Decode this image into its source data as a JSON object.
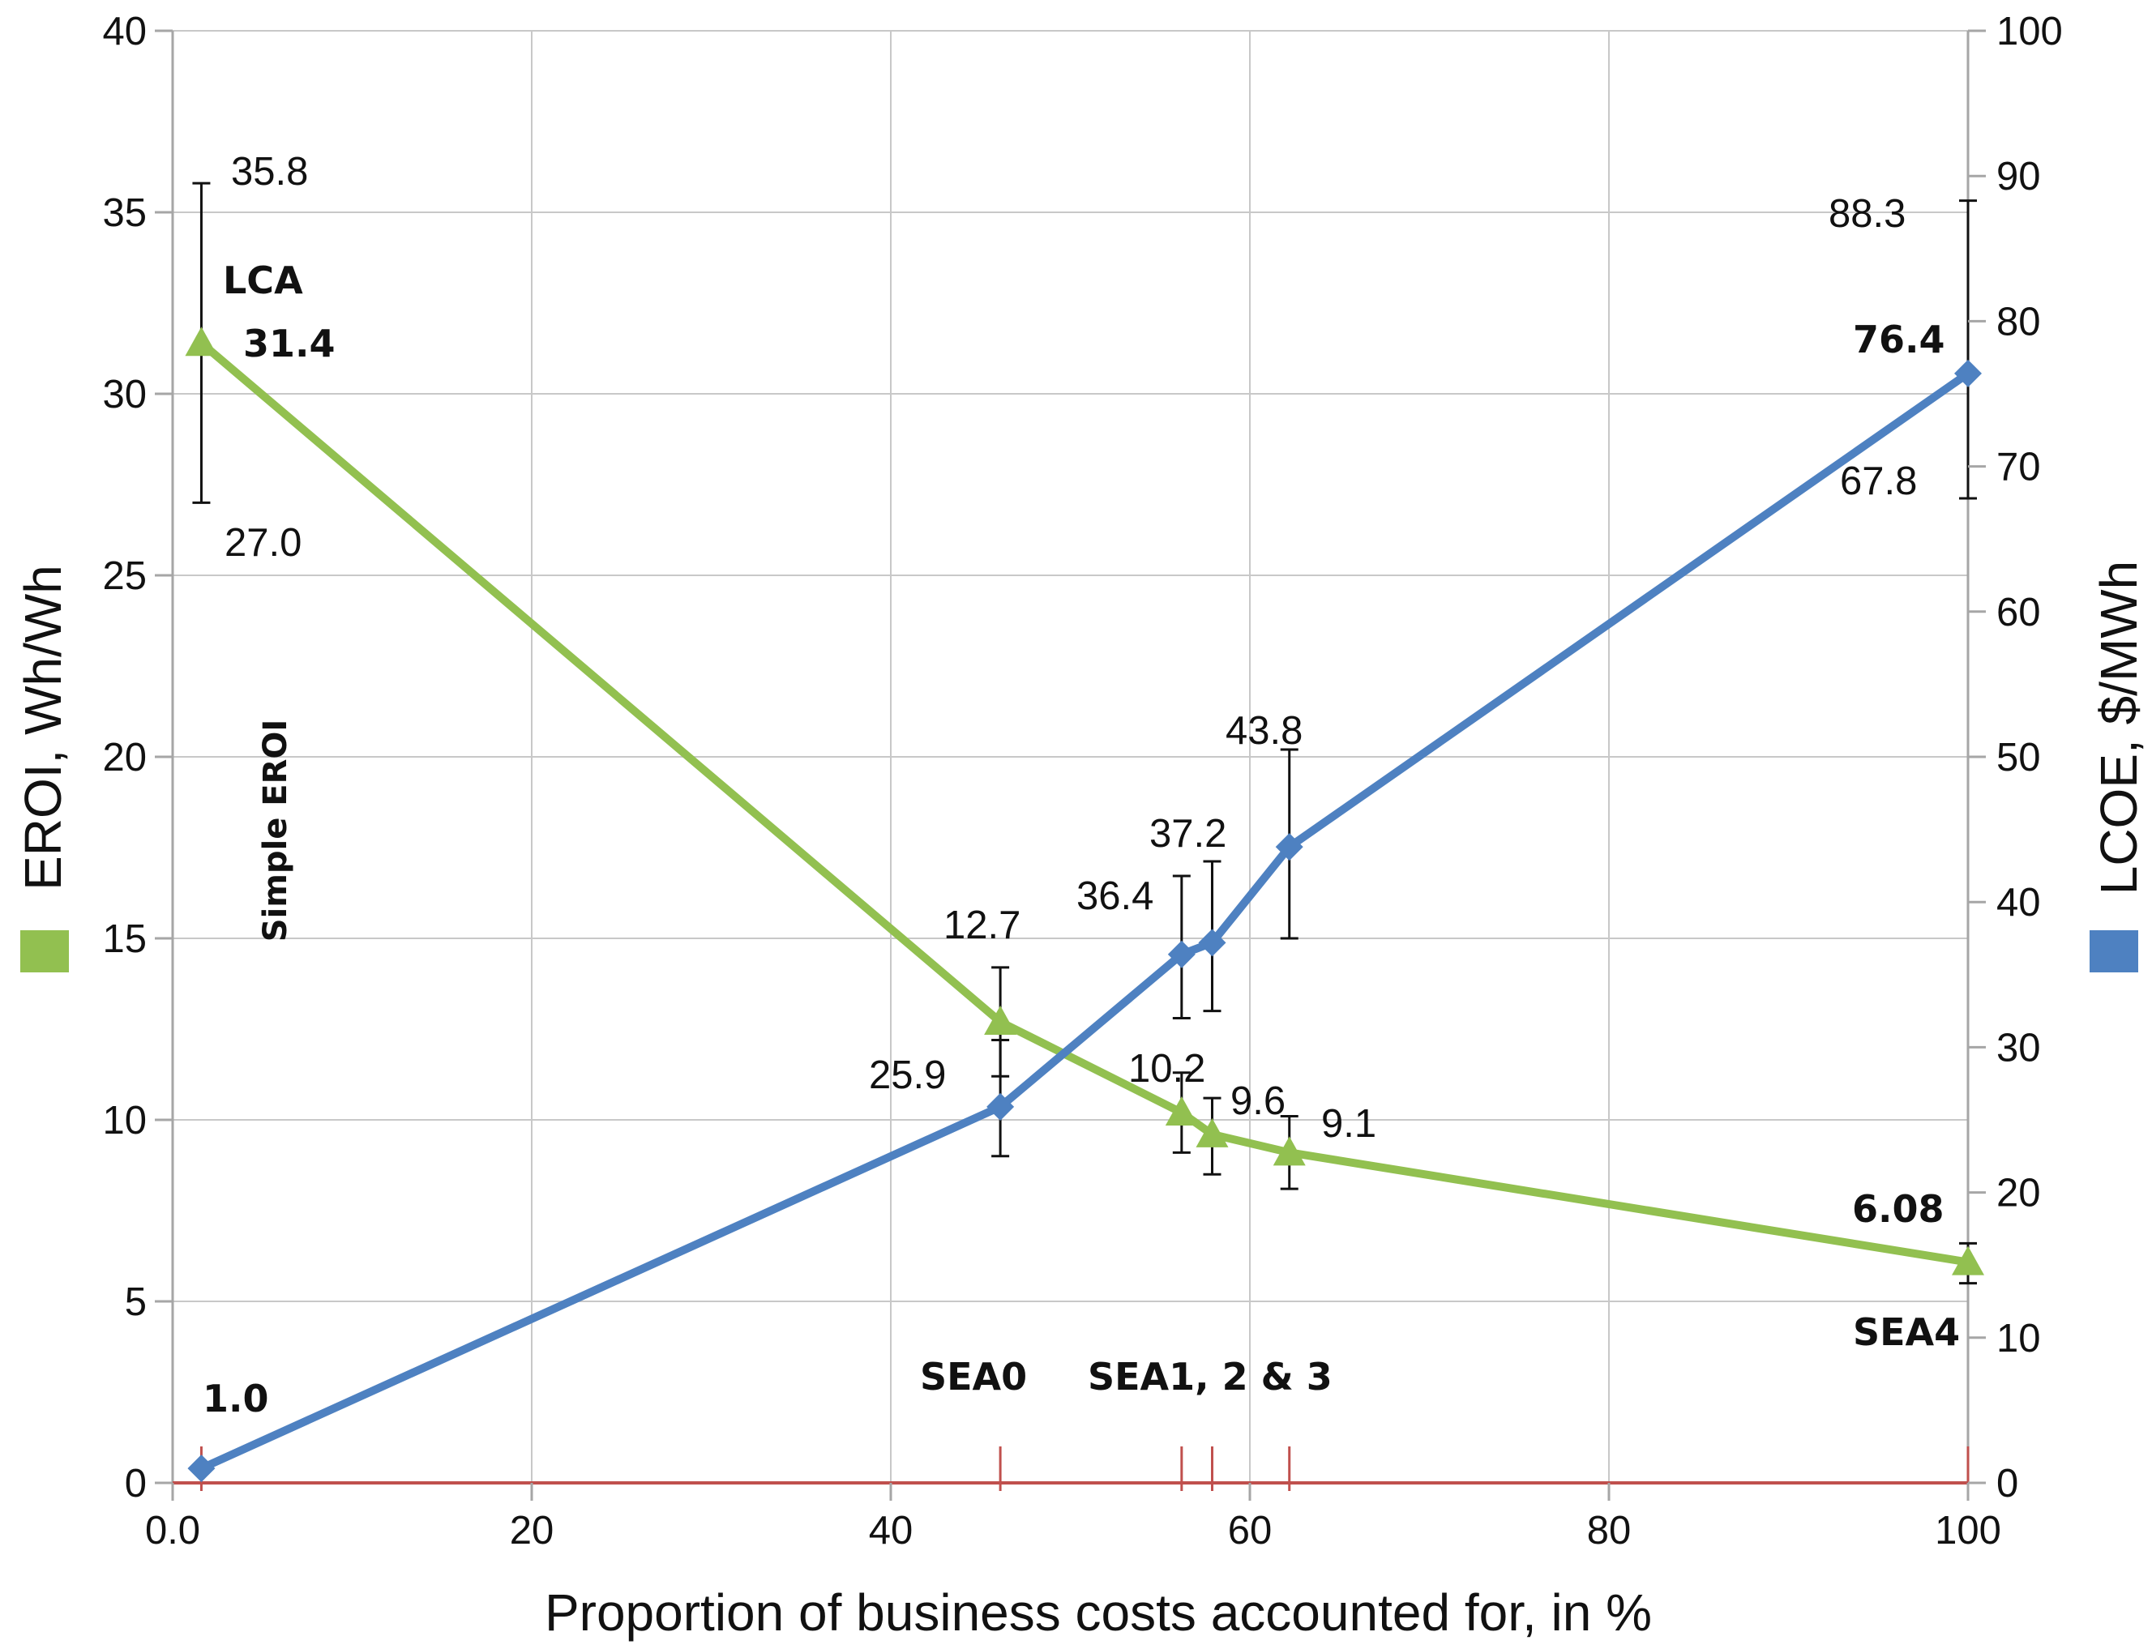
{
  "chart_data": {
    "type": "line",
    "title": "",
    "xlabel": "Proportion of business costs accounted for, in %",
    "ylabel_left": "EROI, Wh/Wh",
    "ylabel_right": "LCOE, $/MWh",
    "xlim": [
      0,
      100
    ],
    "ylim_left": [
      0,
      40
    ],
    "ylim_right": [
      0,
      100
    ],
    "x_ticks": [
      0,
      20,
      40,
      60,
      80,
      100
    ],
    "x_tick_labels": [
      "0.0",
      "20",
      "40",
      "60",
      "80",
      "100"
    ],
    "y_left_ticks": [
      0,
      5,
      10,
      15,
      20,
      25,
      30,
      35,
      40
    ],
    "y_left_tick_labels": [
      "0",
      "5",
      "10",
      "15",
      "20",
      "25",
      "30",
      "35",
      "40"
    ],
    "y_right_ticks": [
      0,
      10,
      20,
      30,
      40,
      50,
      60,
      70,
      80,
      90,
      100
    ],
    "y_right_tick_labels": [
      "0",
      "10",
      "20",
      "30",
      "40",
      "50",
      "60",
      "70",
      "80",
      "90",
      "100"
    ],
    "grid": true,
    "colors": {
      "eroi": "#92c050",
      "lcoe": "#4e81c1",
      "baseline": "#c0504d",
      "error_bar": "#111111",
      "grid": "#c8c8c8",
      "axis": "#a6a6a6"
    },
    "series": [
      {
        "name": "EROI",
        "axis": "left",
        "marker": "triangle",
        "x": [
          1.6,
          46.1,
          56.2,
          57.9,
          62.2,
          100
        ],
        "values": [
          31.4,
          12.7,
          10.2,
          9.6,
          9.1,
          6.08
        ],
        "error_low": [
          27.0,
          11.2,
          9.1,
          8.5,
          8.1,
          5.5
        ],
        "error_high": [
          35.8,
          14.2,
          11.3,
          10.6,
          10.1,
          6.6
        ]
      },
      {
        "name": "LCOE",
        "axis": "right",
        "marker": "diamond",
        "x": [
          1.6,
          46.1,
          56.2,
          57.9,
          62.2,
          100
        ],
        "values": [
          1.0,
          25.9,
          36.4,
          37.2,
          43.8,
          76.4
        ],
        "error_low": [
          null,
          22.5,
          32.0,
          32.5,
          37.5,
          67.8
        ],
        "error_high": [
          null,
          30.5,
          41.8,
          42.8,
          50.5,
          88.3
        ]
      }
    ],
    "baseline": {
      "y": 0,
      "tick_x": [
        1.6,
        46.1,
        56.2,
        57.9,
        62.2,
        100
      ]
    },
    "eroi_labels": [
      {
        "text": "35.8",
        "bold": false
      },
      {
        "text": "31.4",
        "bold": true
      },
      {
        "text": "27.0",
        "bold": false
      },
      {
        "text": "12.7",
        "bold": false
      },
      {
        "text": "10.2",
        "bold": false
      },
      {
        "text": "9.6",
        "bold": false
      },
      {
        "text": "9.1",
        "bold": false
      },
      {
        "text": "6.08",
        "bold": true
      }
    ],
    "lcoe_labels": [
      {
        "text": "1.0",
        "bold": true
      },
      {
        "text": "25.9",
        "bold": false
      },
      {
        "text": "36.4",
        "bold": false
      },
      {
        "text": "37.2",
        "bold": false
      },
      {
        "text": "43.8",
        "bold": false
      },
      {
        "text": "88.3",
        "bold": false
      },
      {
        "text": "76.4",
        "bold": true
      },
      {
        "text": "67.8",
        "bold": false
      }
    ],
    "annotations": {
      "lca": "LCA",
      "simple_eroi": "Simple EROI",
      "sea0": "SEA0",
      "sea123": "SEA1, 2 & 3",
      "sea4": "SEA4"
    }
  }
}
